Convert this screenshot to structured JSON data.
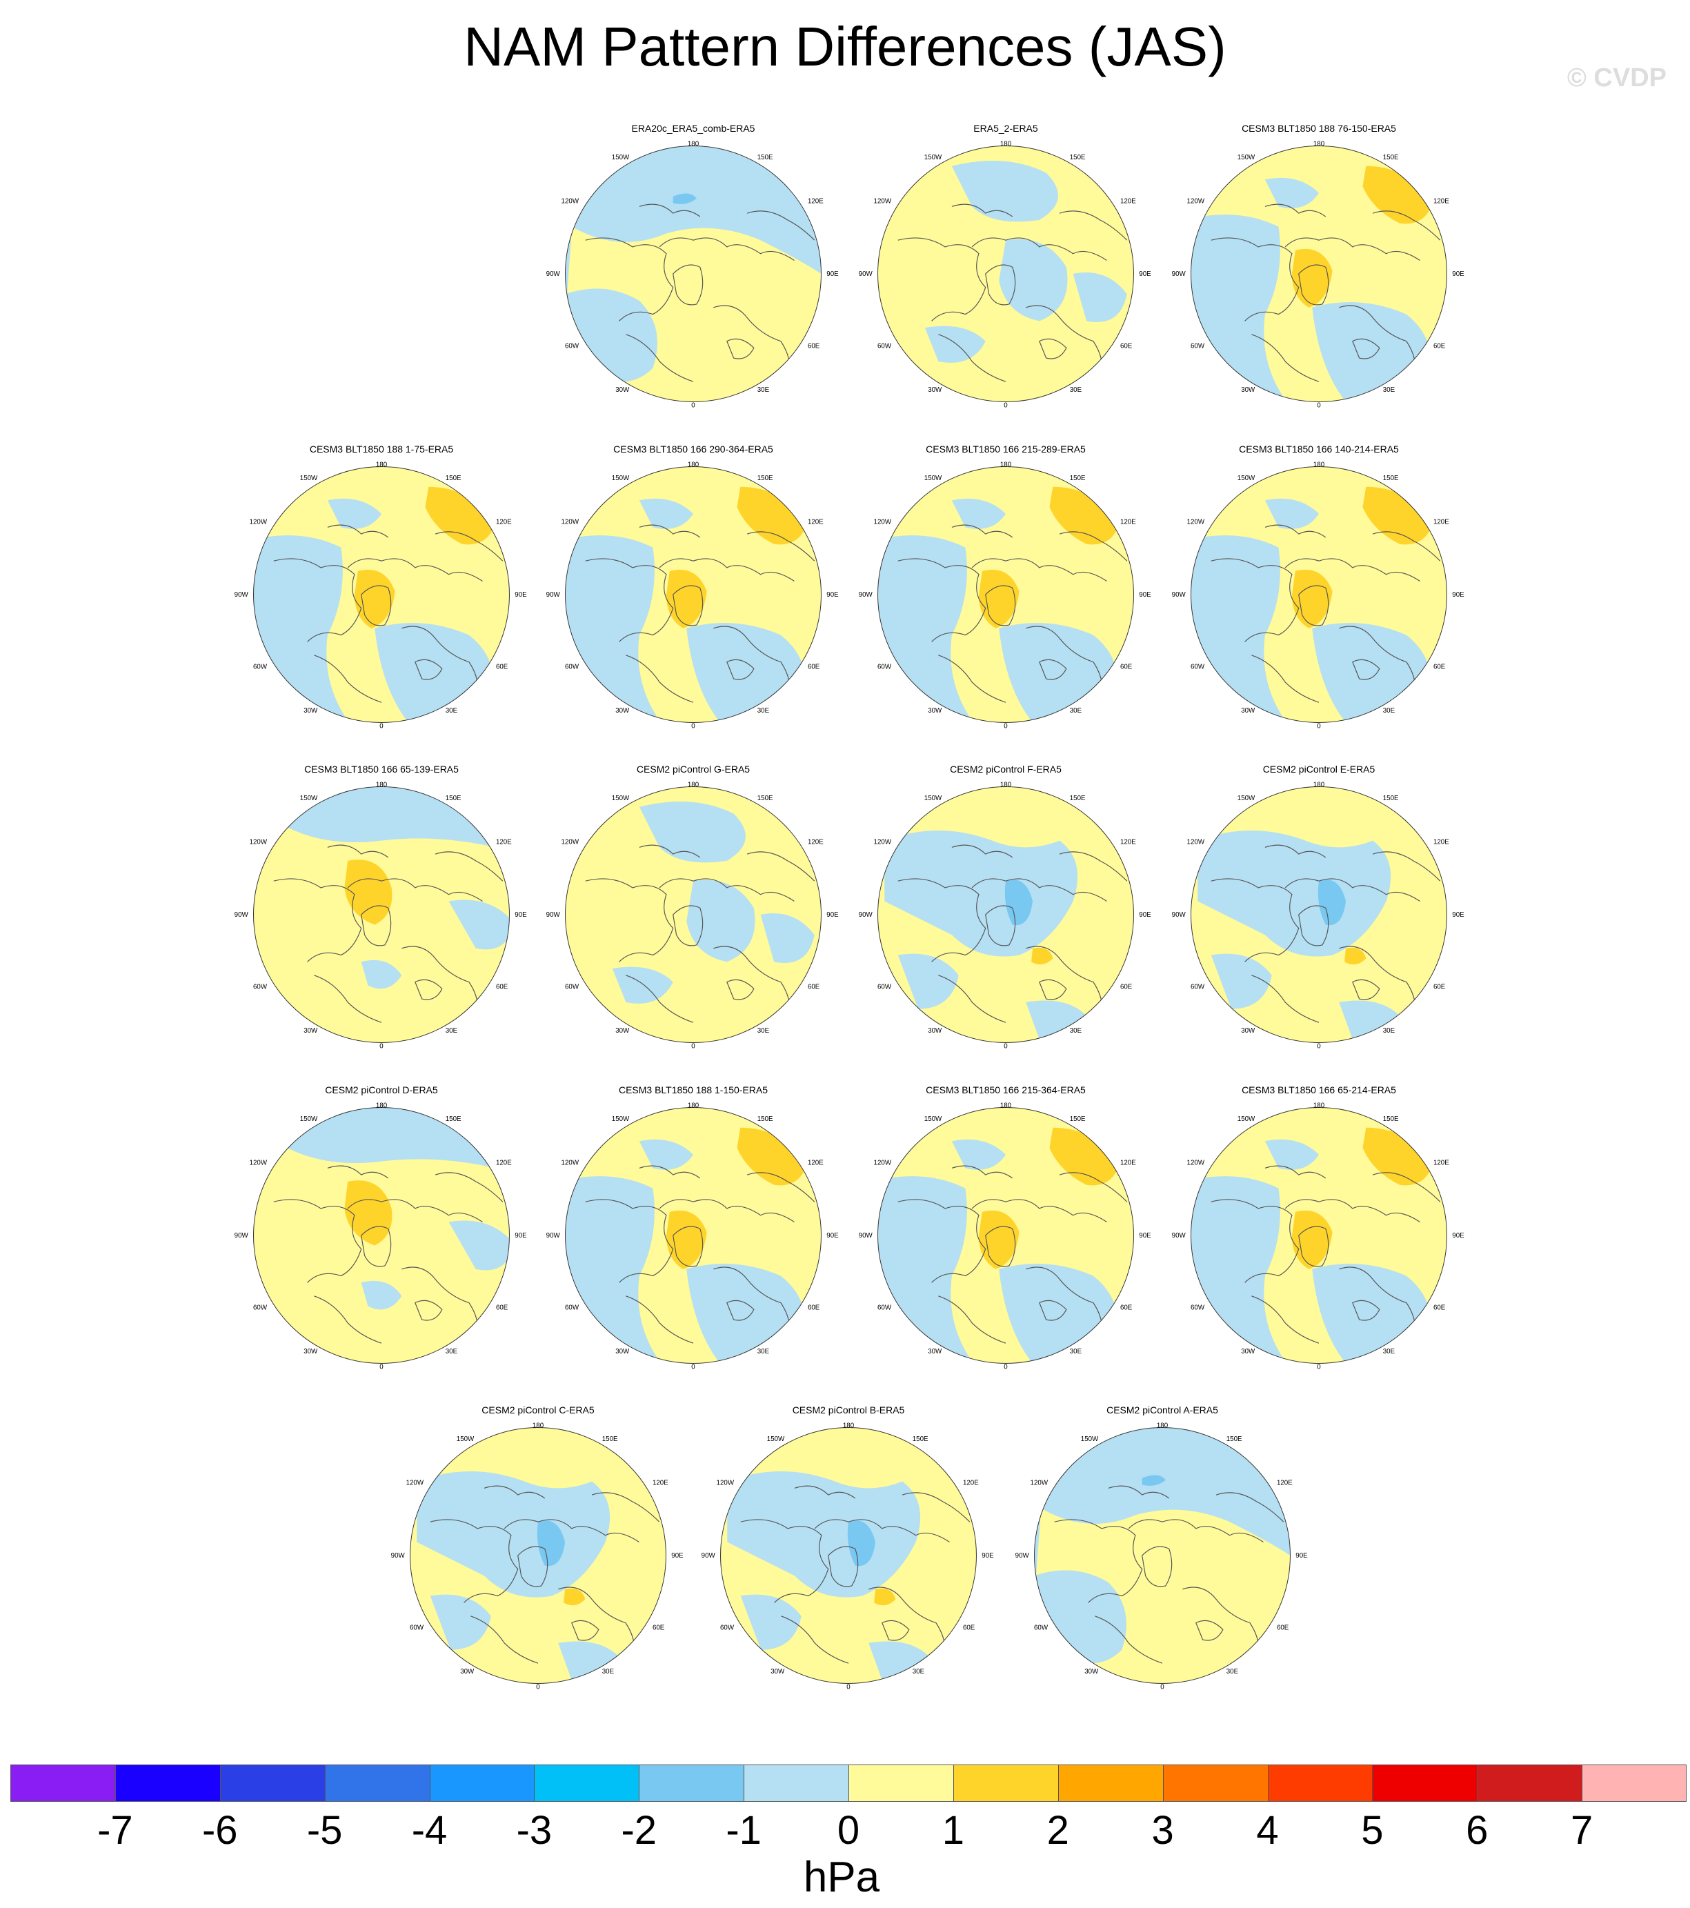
{
  "title": "NAM Pattern Differences (JAS)",
  "watermark": "© CVDP",
  "colors": {
    "neg1": "#b5dff2",
    "pos1": "#fffa9a",
    "pos2": "#ffd42a",
    "neg2": "#78c8f2",
    "coast": "#555555"
  },
  "tick_labels": {
    "top": "180",
    "bottom": "0",
    "left": "90W",
    "right": "90E",
    "n150w": "150W",
    "n150e": "150E",
    "n120w": "120W",
    "n120e": "120E",
    "s60w": "60W",
    "s60e": "60E",
    "s30w": "30W",
    "s30e": "30E"
  },
  "panels": [
    {
      "label": "ERA20c_ERA5_comb-ERA5",
      "pattern": "a"
    },
    {
      "label": "ERA5_2-ERA5",
      "pattern": "b"
    },
    {
      "label": "CESM3 BLT1850 188 76-150-ERA5",
      "pattern": "c"
    },
    {
      "label": "CESM3 BLT1850 188 1-75-ERA5",
      "pattern": "c"
    },
    {
      "label": "CESM3 BLT1850 166 290-364-ERA5",
      "pattern": "c"
    },
    {
      "label": "CESM3 BLT1850 166 215-289-ERA5",
      "pattern": "c"
    },
    {
      "label": "CESM3 BLT1850 166 140-214-ERA5",
      "pattern": "c"
    },
    {
      "label": "CESM3 BLT1850 166 65-139-ERA5",
      "pattern": "d"
    },
    {
      "label": "CESM2 piControl G-ERA5",
      "pattern": "b"
    },
    {
      "label": "CESM2 piControl F-ERA5",
      "pattern": "e"
    },
    {
      "label": "CESM2 piControl E-ERA5",
      "pattern": "e"
    },
    {
      "label": "CESM2 piControl D-ERA5",
      "pattern": "d"
    },
    {
      "label": "CESM3 BLT1850 188 1-150-ERA5",
      "pattern": "c"
    },
    {
      "label": "CESM3 BLT1850 166 215-364-ERA5",
      "pattern": "c"
    },
    {
      "label": "CESM3 BLT1850 166 65-214-ERA5",
      "pattern": "c"
    },
    {
      "label": "CESM2 piControl C-ERA5",
      "pattern": "e"
    },
    {
      "label": "CESM2 piControl B-ERA5",
      "pattern": "e"
    },
    {
      "label": "CESM2 piControl A-ERA5",
      "pattern": "a"
    }
  ],
  "colorbar": {
    "units": "hPa",
    "colors": [
      "#8a1cf4",
      "#1a00ff",
      "#2b3fe6",
      "#3173e8",
      "#1a96ff",
      "#00c0f7",
      "#78c8f2",
      "#b5dff2",
      "#fffa9a",
      "#ffd42a",
      "#ffa600",
      "#ff7500",
      "#ff3c00",
      "#ee0000",
      "#d01c1c",
      "#ffb3b3"
    ],
    "labels": [
      "-7",
      "-6",
      "-5",
      "-4",
      "-3",
      "-2",
      "-1",
      "0",
      "1",
      "2",
      "3",
      "4",
      "5",
      "6",
      "7"
    ]
  }
}
